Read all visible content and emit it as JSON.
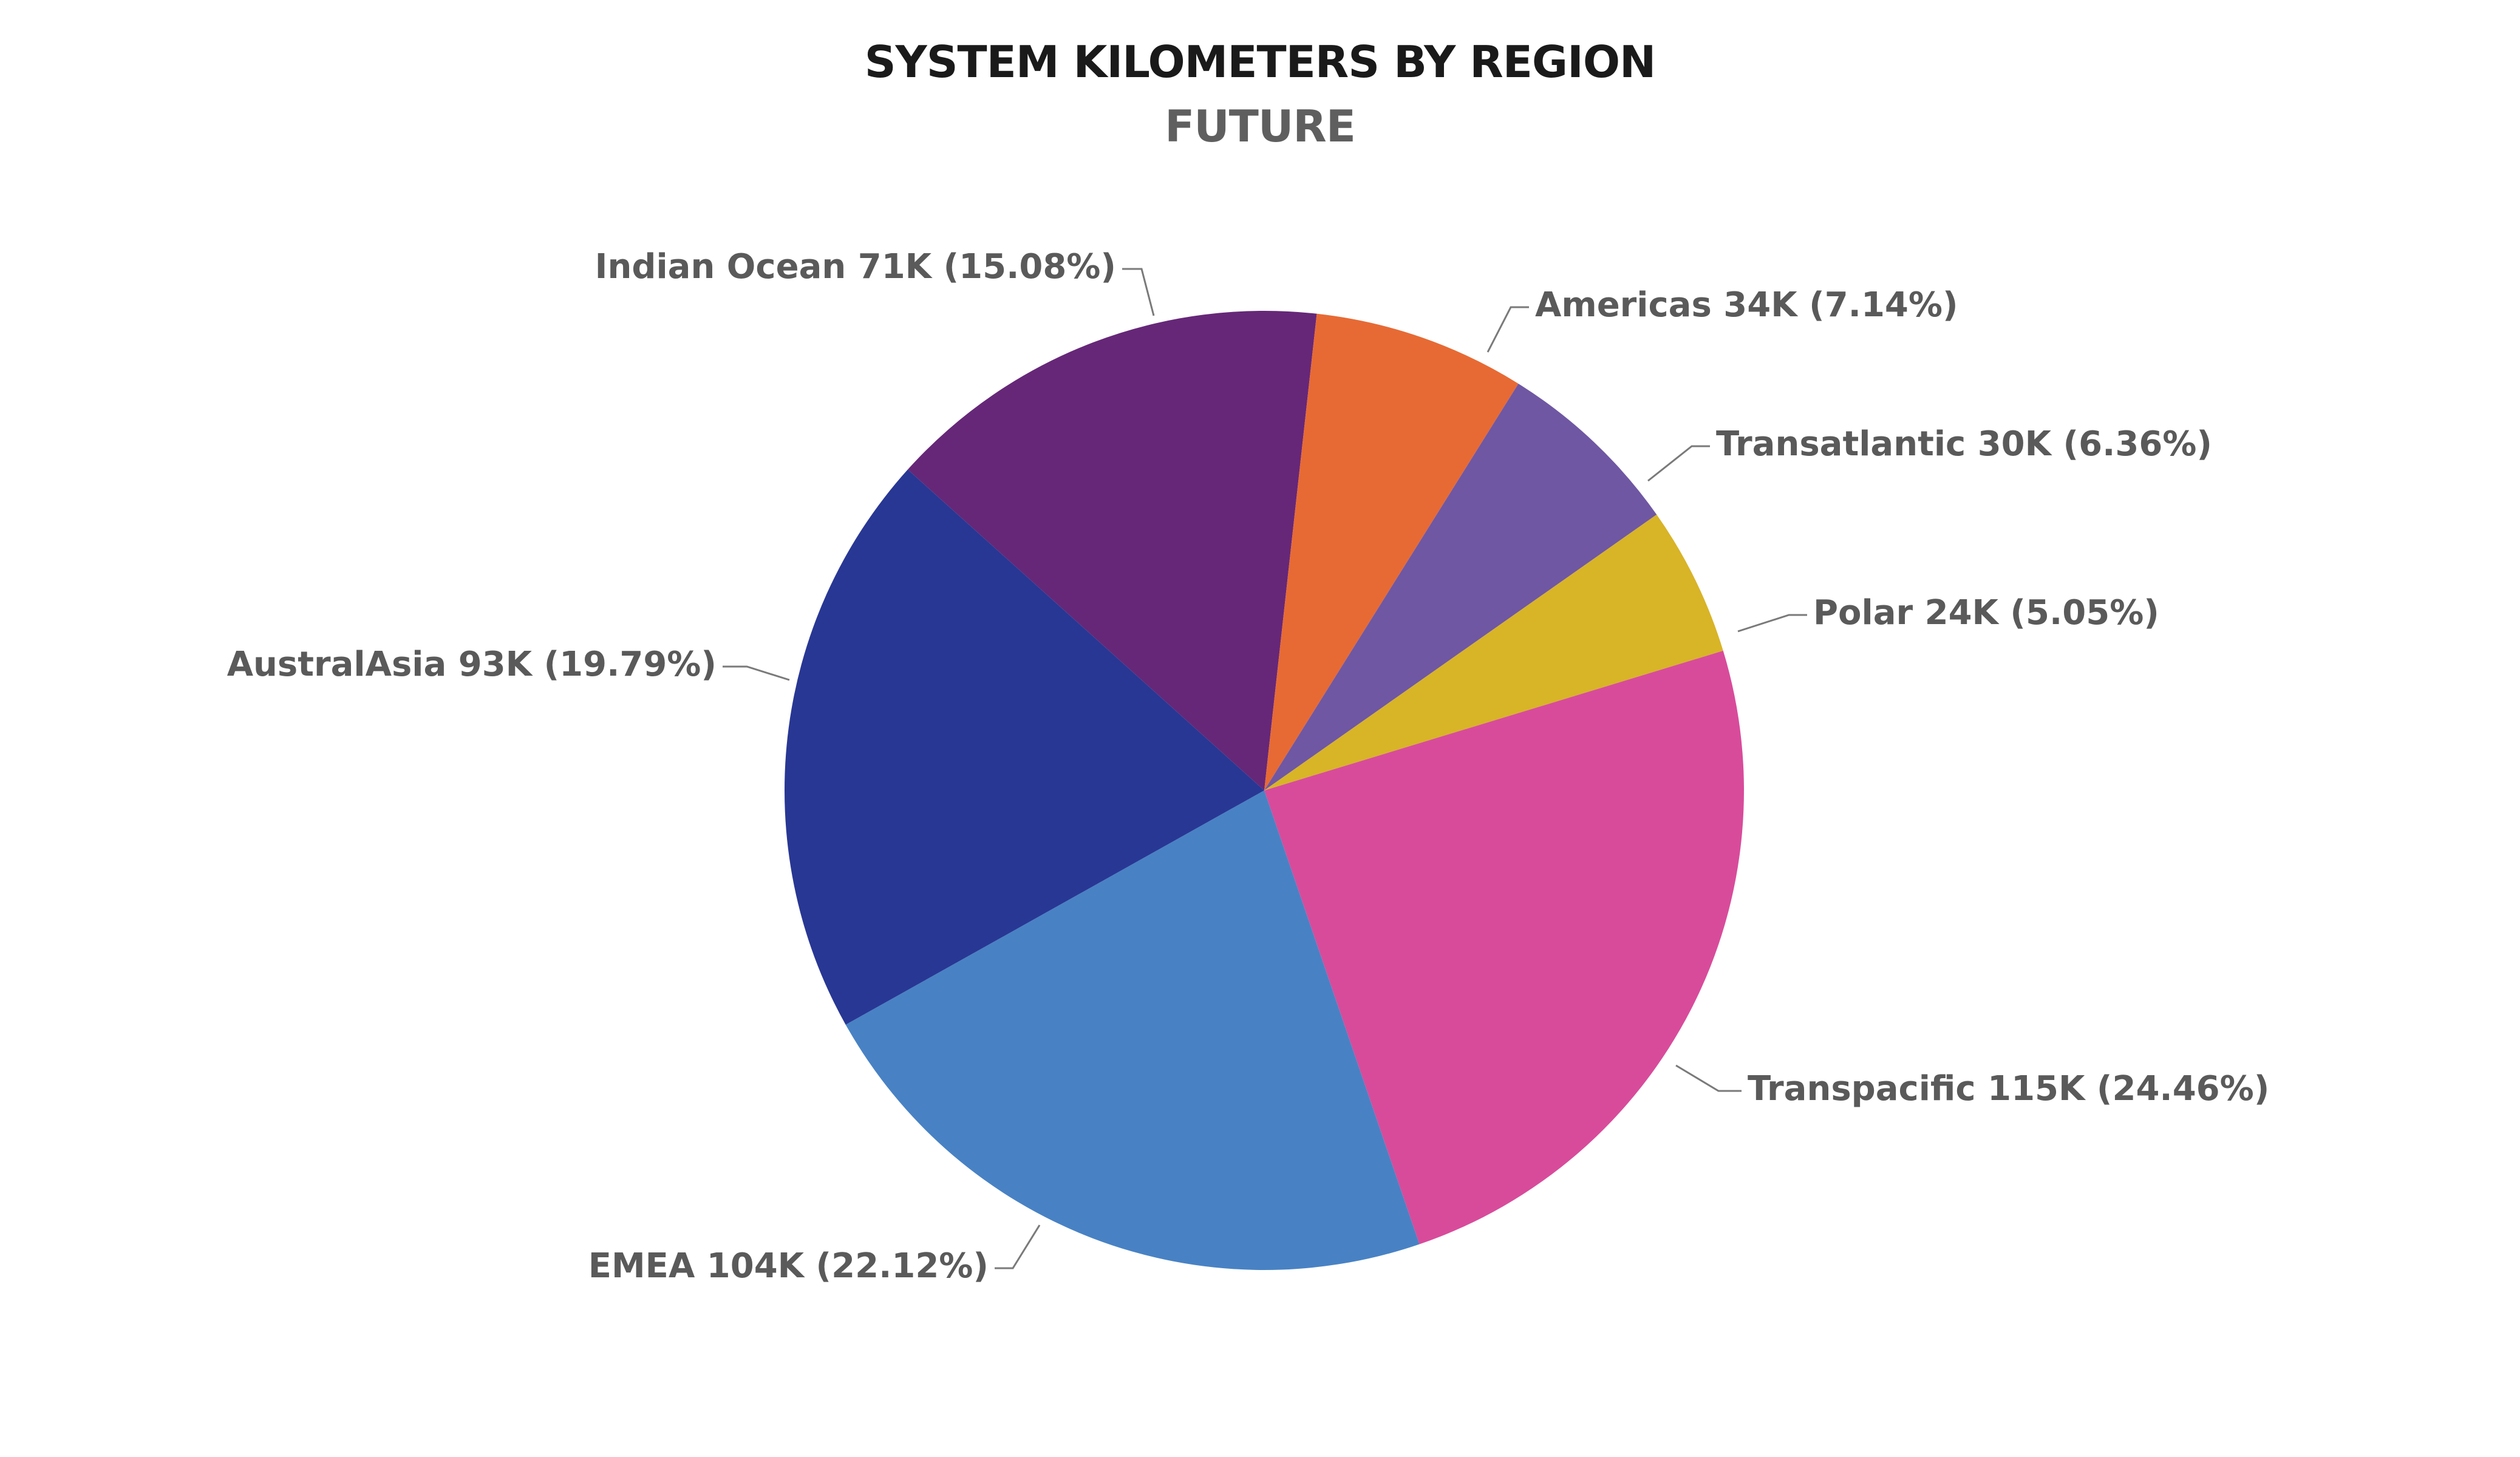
{
  "chart_data": {
    "type": "pie",
    "title": "SYSTEM KILOMETERS BY REGION",
    "subtitle": "FUTURE",
    "legend": "none",
    "slices": [
      {
        "name": "Indian Ocean",
        "value_label": "71K",
        "percent": 15.08,
        "percent_label": "15.08%",
        "color": "#662778"
      },
      {
        "name": "Americas",
        "value_label": "34K",
        "percent": 7.14,
        "percent_label": "7.14%",
        "color": "#E76A34"
      },
      {
        "name": "Transatlantic",
        "value_label": "30K",
        "percent": 6.36,
        "percent_label": "6.36%",
        "color": "#6F57A3"
      },
      {
        "name": "Polar",
        "value_label": "24K",
        "percent": 5.05,
        "percent_label": "5.05%",
        "color": "#D8B427"
      },
      {
        "name": "Transpacific",
        "value_label": "115K",
        "percent": 24.46,
        "percent_label": "24.46%",
        "color": "#D84B9B"
      },
      {
        "name": "EMEA",
        "value_label": "104K",
        "percent": 22.12,
        "percent_label": "22.12%",
        "color": "#4882C4"
      },
      {
        "name": "AustralAsia",
        "value_label": "93K",
        "percent": 19.79,
        "percent_label": "19.79%",
        "color": "#283794"
      }
    ]
  }
}
